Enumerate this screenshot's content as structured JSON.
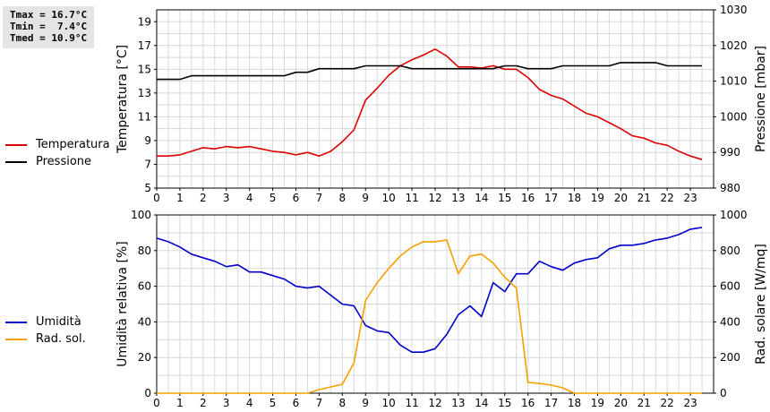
{
  "stats": {
    "tmax": "Tmax = 16.7°C",
    "tmin": "Tmin =  7.4°C",
    "tmed": "Tmed = 10.9°C"
  },
  "legend_top": [
    {
      "label": "Temperatura",
      "color": "#dd0000"
    },
    {
      "label": "Pressione",
      "color": "#000000"
    }
  ],
  "legend_bottom": [
    {
      "label": "Umidità",
      "color": "#0000cc"
    },
    {
      "label": "Rad. sol.",
      "color": "#f5a000"
    }
  ],
  "chart_data": [
    {
      "type": "line",
      "xlim": [
        0,
        24
      ],
      "x_ticks": [
        "0",
        "1",
        "2",
        "3",
        "4",
        "5",
        "6",
        "7",
        "8",
        "9",
        "10",
        "11",
        "12",
        "13",
        "14",
        "15",
        "16",
        "17",
        "18",
        "19",
        "20",
        "21",
        "22",
        "23"
      ],
      "ylabel": "Temperatura [°C]",
      "ylim": [
        5,
        20
      ],
      "y_ticks": [
        "5",
        "7",
        "9",
        "11",
        "13",
        "15",
        "17",
        "19"
      ],
      "y2label": "Pressione [mbar]",
      "y2lim": [
        980,
        1030
      ],
      "y2_ticks": [
        "980",
        "990",
        "1000",
        "1010",
        "1020",
        "1030"
      ],
      "grid": true,
      "series": [
        {
          "name": "Temperatura",
          "axis": "left",
          "color": "#dd0000",
          "x": [
            0,
            0.5,
            1,
            1.5,
            2,
            2.5,
            3,
            3.5,
            4,
            4.5,
            5,
            5.5,
            6,
            6.5,
            7,
            7.5,
            8,
            8.5,
            9,
            9.5,
            10,
            10.5,
            11,
            11.5,
            12,
            12.5,
            13,
            13.5,
            14,
            14.5,
            15,
            15.5,
            16,
            16.5,
            17,
            17.5,
            18,
            18.5,
            19,
            19.5,
            20,
            20.5,
            21,
            21.5,
            22,
            22.5,
            23,
            23.5
          ],
          "values": [
            7.7,
            7.7,
            7.8,
            8.1,
            8.4,
            8.3,
            8.5,
            8.4,
            8.5,
            8.3,
            8.1,
            8.0,
            7.8,
            8.0,
            7.7,
            8.1,
            8.9,
            9.9,
            12.4,
            13.4,
            14.5,
            15.3,
            15.8,
            16.2,
            16.7,
            16.1,
            15.2,
            15.2,
            15.1,
            15.3,
            15.0,
            15.0,
            14.3,
            13.3,
            12.8,
            12.5,
            11.9,
            11.3,
            11.0,
            10.5,
            10.0,
            9.4,
            9.2,
            8.8,
            8.6,
            8.1,
            7.7,
            7.4
          ]
        },
        {
          "name": "Pressione",
          "axis": "right",
          "color": "#000000",
          "x": [
            0,
            0.5,
            1,
            1.5,
            2,
            2.5,
            3,
            3.5,
            4,
            4.5,
            5,
            5.5,
            6,
            6.5,
            7,
            7.5,
            8,
            8.5,
            9,
            9.5,
            10,
            10.5,
            11,
            11.5,
            12,
            12.5,
            13,
            13.5,
            14,
            14.5,
            15,
            15.5,
            16,
            16.5,
            17,
            17.5,
            18,
            18.5,
            19,
            19.5,
            20,
            20.5,
            21,
            21.5,
            22,
            22.5,
            23,
            23.5
          ],
          "values": [
            1010.5,
            1010.5,
            1010.5,
            1011.5,
            1011.5,
            1011.5,
            1011.5,
            1011.5,
            1011.5,
            1011.5,
            1011.5,
            1011.5,
            1012.5,
            1012.5,
            1013.5,
            1013.5,
            1013.5,
            1013.5,
            1014.3,
            1014.3,
            1014.3,
            1014.3,
            1013.5,
            1013.5,
            1013.5,
            1013.5,
            1013.5,
            1013.5,
            1013.5,
            1013.5,
            1014.3,
            1014.3,
            1013.5,
            1013.5,
            1013.5,
            1014.3,
            1014.3,
            1014.3,
            1014.3,
            1014.3,
            1015.2,
            1015.2,
            1015.2,
            1015.2,
            1014.3,
            1014.3,
            1014.3,
            1014.3
          ]
        }
      ]
    },
    {
      "type": "line",
      "xlim": [
        0,
        24
      ],
      "x_ticks": [
        "0",
        "1",
        "2",
        "3",
        "4",
        "5",
        "6",
        "7",
        "8",
        "9",
        "10",
        "11",
        "12",
        "13",
        "14",
        "15",
        "16",
        "17",
        "18",
        "19",
        "20",
        "21",
        "22",
        "23"
      ],
      "ylabel": "Umidità relativa [%]",
      "ylim": [
        0,
        100
      ],
      "y_ticks": [
        "0",
        "20",
        "40",
        "60",
        "80",
        "100"
      ],
      "y2label": "Rad. solare [W/mq]",
      "y2lim": [
        0,
        1000
      ],
      "y2_ticks": [
        "0",
        "200",
        "400",
        "600",
        "800",
        "1000"
      ],
      "grid": true,
      "series": [
        {
          "name": "Umidità",
          "axis": "left",
          "color": "#0000cc",
          "x": [
            0,
            0.5,
            1,
            1.5,
            2,
            2.5,
            3,
            3.5,
            4,
            4.5,
            5,
            5.5,
            6,
            6.5,
            7,
            7.5,
            8,
            8.5,
            9,
            9.5,
            10,
            10.5,
            11,
            11.5,
            12,
            12.5,
            13,
            13.5,
            14,
            14.5,
            15,
            15.5,
            16,
            16.5,
            17,
            17.5,
            18,
            18.5,
            19,
            19.5,
            20,
            20.5,
            21,
            21.5,
            22,
            22.5,
            23,
            23.5
          ],
          "values": [
            87,
            85,
            82,
            78,
            76,
            74,
            71,
            72,
            68,
            68,
            66,
            64,
            60,
            59,
            60,
            55,
            50,
            49,
            38,
            35,
            34,
            27,
            23,
            23,
            25,
            33,
            44,
            49,
            43,
            62,
            57,
            67,
            67,
            74,
            71,
            69,
            73,
            75,
            76,
            81,
            83,
            83,
            84,
            86,
            87,
            89,
            92,
            93
          ]
        },
        {
          "name": "Rad. sol.",
          "axis": "right",
          "color": "#f5a000",
          "x": [
            0,
            0.5,
            1,
            1.5,
            2,
            2.5,
            3,
            3.5,
            4,
            4.5,
            5,
            5.5,
            6,
            6.5,
            7,
            7.5,
            8,
            8.5,
            9,
            9.5,
            10,
            10.5,
            11,
            11.5,
            12,
            12.5,
            13,
            13.5,
            14,
            14.5,
            15,
            15.5,
            16,
            16.5,
            17,
            17.5,
            18,
            18.5,
            19,
            19.5,
            20,
            20.5,
            21,
            21.5,
            22,
            22.5,
            23,
            23.5
          ],
          "values": [
            0,
            0,
            0,
            0,
            0,
            0,
            0,
            0,
            0,
            0,
            0,
            0,
            0,
            0,
            20,
            35,
            50,
            170,
            520,
            620,
            700,
            770,
            820,
            850,
            850,
            860,
            670,
            770,
            780,
            730,
            650,
            590,
            60,
            55,
            45,
            30,
            0,
            0,
            0,
            0,
            0,
            0,
            0,
            0,
            0,
            0,
            0,
            0
          ]
        }
      ]
    }
  ]
}
